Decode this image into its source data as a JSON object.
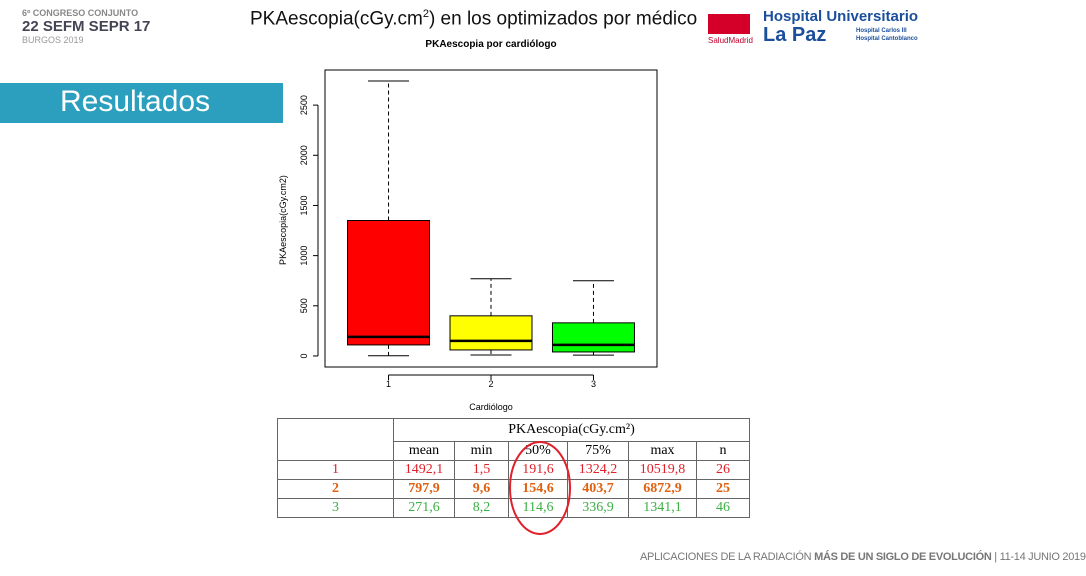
{
  "header": {
    "title_pre": "PKAescopia(cGy.cm",
    "title_sup": "2",
    "title_post": ") en los optimizados por médico",
    "congress": {
      "line1": "6º CONGRESO CONJUNTO",
      "line2": "22 SEFM SEPR 17",
      "line3": "BURGOS 2019"
    },
    "hospital": {
      "health": "SaludMadrid",
      "name1": "Hospital Universitario",
      "name2": "La Paz",
      "sub1": "Hospital Carlos III",
      "sub2": "Hospital Cantoblanco"
    }
  },
  "section_title": "Resultados",
  "chart_data": {
    "type": "boxplot",
    "title": "PKAescopia por cardiólogo",
    "x_label": "Cardiólogo",
    "y_label": "PKAescopia(cGy.cm2)",
    "categories": [
      "1",
      "2",
      "3"
    ],
    "boxes": [
      {
        "color": "#ff0000",
        "low": 1.5,
        "q1": 110,
        "median": 190,
        "q3": 1350,
        "high": 2740
      },
      {
        "color": "#ffff00",
        "low": 10,
        "q1": 60,
        "median": 150,
        "q3": 400,
        "high": 770
      },
      {
        "color": "#00ff00",
        "low": 8,
        "q1": 40,
        "median": 110,
        "q3": 330,
        "high": 750
      }
    ],
    "ylim": [
      -110,
      2850
    ],
    "yticks": [
      0,
      500,
      1000,
      1500,
      2000,
      2500
    ]
  },
  "table": {
    "group_header": "PKAescopia(cGy.cm²)",
    "columns": [
      "mean",
      "min",
      "50%",
      "75%",
      "max",
      "n"
    ],
    "rows": [
      [
        "1",
        "1492,1",
        "1,5",
        "191,6",
        "1324,2",
        "10519,8",
        "26"
      ],
      [
        "2",
        "797,9",
        "9,6",
        "154,6",
        "403,7",
        "6872,9",
        "25"
      ],
      [
        "3",
        "271,6",
        "8,2",
        "114,6",
        "336,9",
        "1341,1",
        "46"
      ]
    ]
  },
  "footer": {
    "part1": "APLICACIONES DE LA RADIACIÓN",
    "part2": "MÁS DE UN SIGLO DE EVOLUCIÓN",
    "part3": "11-14 JUNIO 2019"
  }
}
